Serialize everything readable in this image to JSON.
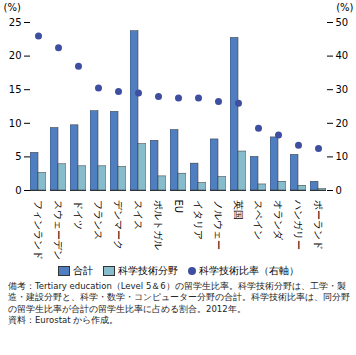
{
  "chart_data": {
    "type": "bar",
    "ylabel": "(%)",
    "y2label": "(%)",
    "categories": [
      "フィンランド",
      "スウェーデン",
      "ドイツ",
      "フランス",
      "デンマーク",
      "スイス",
      "ポルトガル",
      "EU",
      "イタリア",
      "ノルウェー",
      "英国",
      "スペイン",
      "オランダ",
      "ハンガリー",
      "ポーランド"
    ],
    "series": [
      {
        "name": "合計",
        "color": "#4f7fc0",
        "values": [
          5.6,
          9.3,
          9.7,
          11.8,
          11.7,
          23.7,
          7.4,
          9.0,
          4.0,
          7.6,
          22.7,
          5.0,
          7.9,
          5.3,
          1.3
        ]
      },
      {
        "name": "科学技術分野",
        "color": "#86bccb",
        "values": [
          2.6,
          3.9,
          3.6,
          3.6,
          3.5,
          6.9,
          2.1,
          2.5,
          1.1,
          2.0,
          5.8,
          0.9,
          1.3,
          0.7,
          0.2
        ]
      },
      {
        "name": "科学技術比率（右軸）",
        "type": "scatter",
        "axis": "y2",
        "marker": "circle",
        "color": "#3f4f9f",
        "values": [
          46,
          42.5,
          37,
          30.5,
          29.5,
          29,
          28,
          27.5,
          27.5,
          26.5,
          26,
          18.5,
          16.5,
          13.5,
          12.5
        ]
      }
    ],
    "ylim": [
      0,
      25
    ],
    "yticks": [
      0,
      5,
      10,
      15,
      20,
      25
    ],
    "y2lim": [
      0,
      50
    ],
    "y2ticks": [
      0,
      10,
      20,
      30,
      40,
      50
    ],
    "annotations": [
      "備考：Tertiary education（Level 5＆6）の留学生比率。科学技術分野は、工学・製造・建設分野と、科学・数学・コンピューター分野の合計。科学技術比率は、同分野の留学生比率が合計の留学生比率に占める割合。2012年。",
      "資料：Eurostat から作成。"
    ]
  }
}
